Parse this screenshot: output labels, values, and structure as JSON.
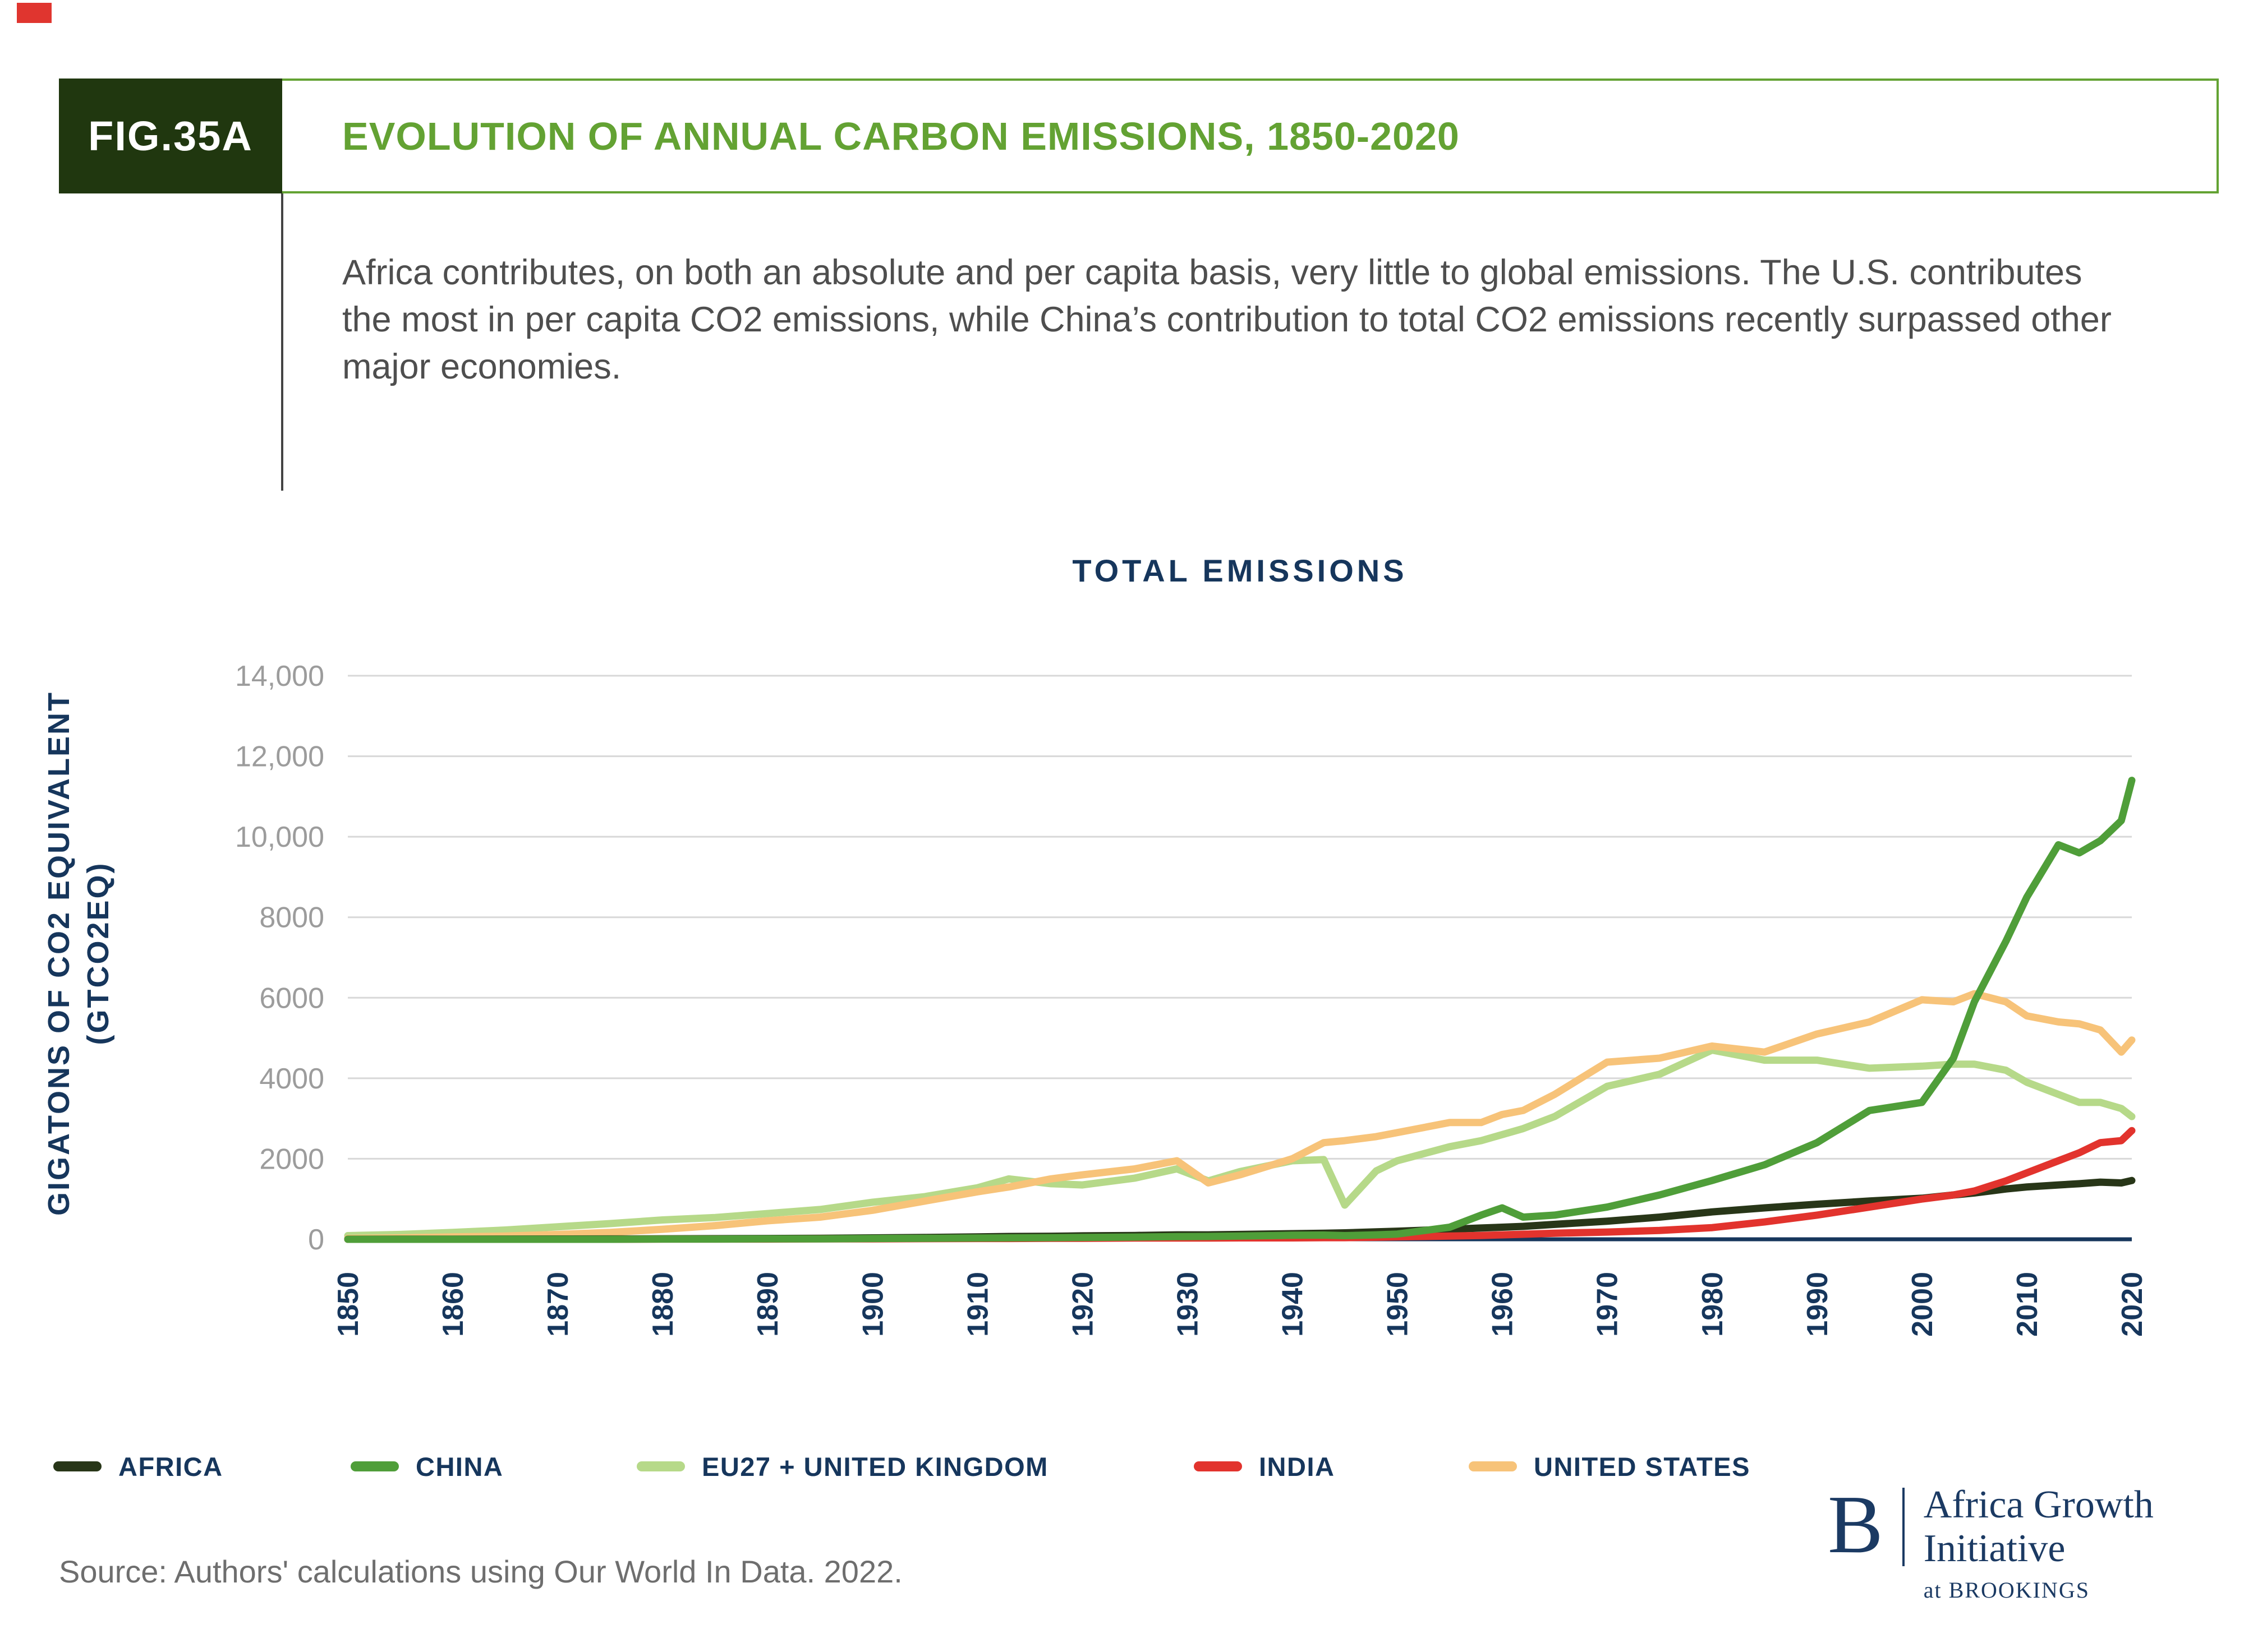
{
  "page": {
    "fig_label": "FIG.35A",
    "title": "EVOLUTION OF ANNUAL CARBON EMISSIONS, 1850-2020",
    "description": "Africa contributes, on both an absolute and per capita basis, very little to global emissions. The U.S. contributes the most in per capita CO2 emissions, while China’s contribution to total CO2 emissions recently surpassed other major economies.",
    "source": "Source: Authors' calculations using Our World In Data. 2022.",
    "accent_red": "#e0352f",
    "header_green": "#63a233",
    "fig_box_green": "#20370f",
    "navy": "#16365c"
  },
  "logo": {
    "initial": "B",
    "line1": "Africa Growth",
    "line2": "Initiative",
    "line3": "at BROOKINGS"
  },
  "chart_data": {
    "type": "line",
    "title": "TOTAL EMISSIONS",
    "ylabel_line1": "GIGATONS OF CO2 EQUIVALENT",
    "ylabel_line2": "(GTCO2EQ)",
    "ylim": [
      0,
      14000
    ],
    "xlim": [
      1850,
      2020
    ],
    "grid": true,
    "legend_position": "bottom",
    "ytick_values": [
      0,
      2000,
      4000,
      6000,
      8000,
      10000,
      12000,
      14000
    ],
    "ytick_labels": [
      "0",
      "2000",
      "4000",
      "6000",
      "8000",
      "10,000",
      "12,000",
      "14,000"
    ],
    "xticks": [
      1850,
      1860,
      1870,
      1880,
      1890,
      1900,
      1910,
      1920,
      1930,
      1940,
      1950,
      1960,
      1970,
      1980,
      1990,
      2000,
      2010,
      2020
    ],
    "x": [
      1850,
      1855,
      1860,
      1865,
      1870,
      1875,
      1880,
      1885,
      1890,
      1895,
      1900,
      1905,
      1910,
      1913,
      1917,
      1920,
      1925,
      1929,
      1932,
      1935,
      1940,
      1943,
      1945,
      1948,
      1950,
      1955,
      1958,
      1960,
      1962,
      1965,
      1970,
      1975,
      1980,
      1985,
      1990,
      1995,
      2000,
      2003,
      2005,
      2008,
      2010,
      2013,
      2015,
      2017,
      2019,
      2020
    ],
    "series": [
      {
        "name": "AFRICA",
        "color": "#283618",
        "values": [
          2,
          3,
          4,
          5,
          7,
          9,
          12,
          15,
          20,
          25,
          35,
          45,
          60,
          70,
          75,
          85,
          95,
          110,
          110,
          120,
          140,
          150,
          160,
          185,
          200,
          250,
          280,
          300,
          320,
          370,
          450,
          550,
          680,
          780,
          870,
          950,
          1020,
          1100,
          1150,
          1250,
          1300,
          1350,
          1380,
          1420,
          1400,
          1460
        ]
      },
      {
        "name": "CHINA",
        "color": "#4f9e39",
        "values": [
          0,
          0,
          0,
          0,
          0,
          0,
          5,
          5,
          10,
          10,
          20,
          25,
          30,
          35,
          40,
          45,
          55,
          65,
          70,
          80,
          100,
          105,
          90,
          110,
          130,
          300,
          600,
          780,
          550,
          600,
          800,
          1100,
          1460,
          1850,
          2400,
          3200,
          3400,
          4500,
          5900,
          7400,
          8500,
          9800,
          9600,
          9900,
          10400,
          11400
        ]
      },
      {
        "name": "EU27 + UNITED KINGDOM",
        "color": "#b6d989",
        "values": [
          90,
          120,
          170,
          230,
          310,
          390,
          480,
          540,
          640,
          740,
          920,
          1060,
          1280,
          1500,
          1380,
          1350,
          1520,
          1750,
          1450,
          1680,
          1950,
          1980,
          850,
          1700,
          1950,
          2300,
          2450,
          2600,
          2750,
          3050,
          3800,
          4100,
          4700,
          4450,
          4450,
          4250,
          4300,
          4350,
          4350,
          4200,
          3900,
          3600,
          3400,
          3400,
          3250,
          3050
        ]
      },
      {
        "name": "INDIA",
        "color": "#e2332d",
        "values": [
          0,
          0,
          0,
          0,
          0,
          0,
          5,
          5,
          5,
          10,
          10,
          15,
          20,
          20,
          25,
          25,
          30,
          30,
          30,
          35,
          35,
          40,
          40,
          50,
          60,
          80,
          95,
          110,
          125,
          150,
          180,
          220,
          290,
          430,
          600,
          800,
          1000,
          1100,
          1200,
          1450,
          1650,
          1950,
          2150,
          2400,
          2450,
          2700
        ]
      },
      {
        "name": "UNITED STATES",
        "color": "#f7c379",
        "values": [
          20,
          35,
          60,
          80,
          120,
          170,
          250,
          340,
          460,
          550,
          720,
          950,
          1180,
          1300,
          1500,
          1600,
          1750,
          1950,
          1400,
          1600,
          2000,
          2400,
          2450,
          2550,
          2650,
          2900,
          2900,
          3100,
          3200,
          3600,
          4400,
          4500,
          4800,
          4650,
          5100,
          5400,
          5950,
          5900,
          6100,
          5900,
          5550,
          5400,
          5350,
          5200,
          4650,
          4950
        ]
      }
    ]
  }
}
